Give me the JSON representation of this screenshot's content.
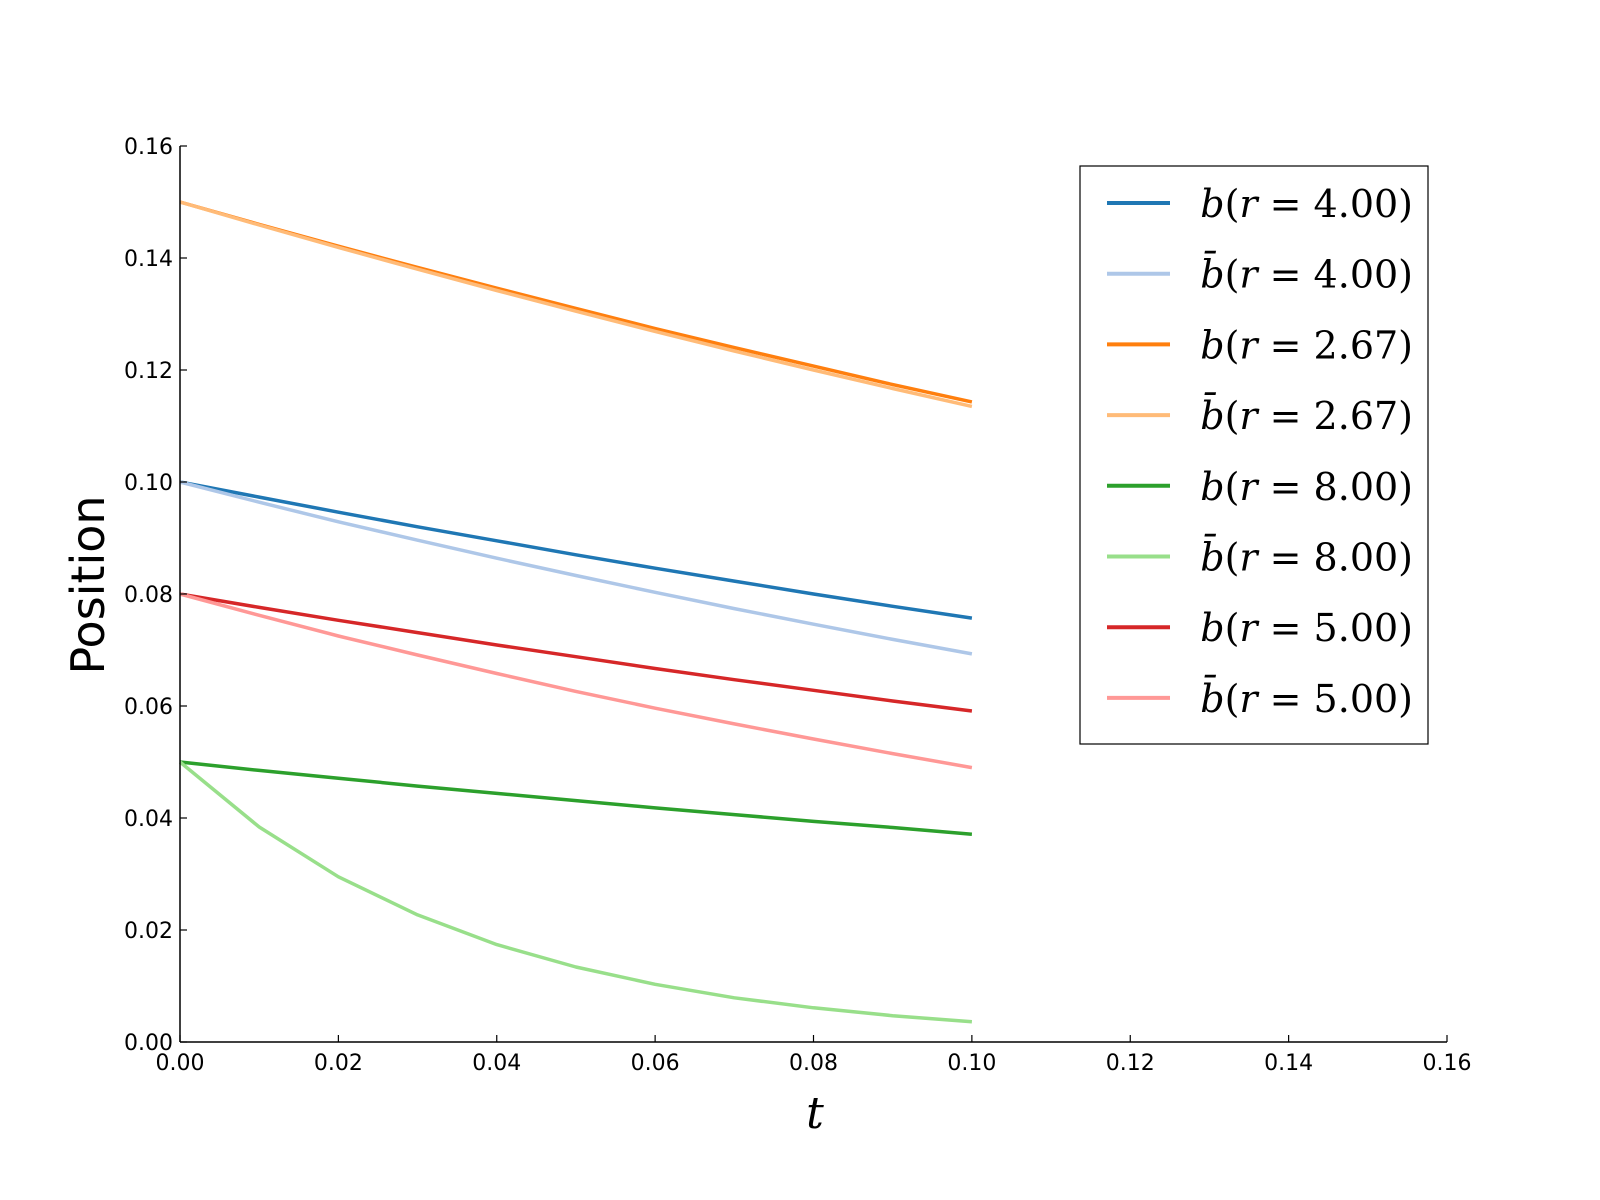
{
  "chart_data": {
    "type": "line",
    "title": "",
    "xlabel": "t",
    "ylabel": "Position",
    "xlim": [
      0.0,
      0.16
    ],
    "ylim": [
      0.0,
      0.16
    ],
    "x_ticks": [
      "0.00",
      "0.02",
      "0.04",
      "0.06",
      "0.08",
      "0.10",
      "0.12",
      "0.14",
      "0.16"
    ],
    "y_ticks": [
      "0.00",
      "0.02",
      "0.04",
      "0.06",
      "0.08",
      "0.10",
      "0.12",
      "0.14",
      "0.16"
    ],
    "grid": false,
    "legend_position": "top-right",
    "x": [
      0.0,
      0.01,
      0.02,
      0.03,
      0.04,
      0.05,
      0.06,
      0.07,
      0.08,
      0.09,
      0.1
    ],
    "series": [
      {
        "name": "b(r = 4.00)",
        "color": "#1f77b4",
        "legend": {
          "base": "b",
          "bar": false,
          "r": "4.00"
        },
        "values": [
          0.1,
          0.0973,
          0.0946,
          0.092,
          0.0895,
          0.087,
          0.0846,
          0.0823,
          0.08,
          0.0778,
          0.0757
        ]
      },
      {
        "name": "b̄(r = 4.00)",
        "color": "#aec7e8",
        "legend": {
          "base": "b",
          "bar": true,
          "r": "4.00"
        },
        "values": [
          0.1,
          0.0964,
          0.0929,
          0.0896,
          0.0864,
          0.0833,
          0.0803,
          0.0774,
          0.0746,
          0.0719,
          0.0693
        ]
      },
      {
        "name": "b(r = 2.67)",
        "color": "#ff7f0e",
        "legend": {
          "base": "b",
          "bar": false,
          "r": "2.67"
        },
        "values": [
          0.15,
          0.146,
          0.1421,
          0.1383,
          0.1346,
          0.131,
          0.1274,
          0.124,
          0.1207,
          0.1174,
          0.1143
        ]
      },
      {
        "name": "b̄(r = 2.67)",
        "color": "#ffbb78",
        "legend": {
          "base": "b",
          "bar": true,
          "r": "2.67"
        },
        "values": [
          0.15,
          0.1459,
          0.1419,
          0.138,
          0.1342,
          0.1305,
          0.1269,
          0.1234,
          0.12,
          0.1167,
          0.1135
        ]
      },
      {
        "name": "b(r = 8.00)",
        "color": "#2ca02c",
        "legend": {
          "base": "b",
          "bar": false,
          "r": "8.00"
        },
        "values": [
          0.05,
          0.0485,
          0.0471,
          0.0457,
          0.0444,
          0.0431,
          0.0418,
          0.0406,
          0.0394,
          0.0383,
          0.0371
        ]
      },
      {
        "name": "b̄(r = 8.00)",
        "color": "#98df8a",
        "legend": {
          "base": "b",
          "bar": true,
          "r": "8.00"
        },
        "values": [
          0.05,
          0.0384,
          0.0295,
          0.0227,
          0.0174,
          0.0134,
          0.0103,
          0.0079,
          0.0061,
          0.0047,
          0.0036
        ]
      },
      {
        "name": "b(r = 5.00)",
        "color": "#d62728",
        "legend": {
          "base": "b",
          "bar": false,
          "r": "5.00"
        },
        "values": [
          0.08,
          0.0776,
          0.0753,
          0.0731,
          0.0709,
          0.0688,
          0.0667,
          0.0647,
          0.0628,
          0.0609,
          0.0591
        ]
      },
      {
        "name": "b̄(r = 5.00)",
        "color": "#ff9896",
        "legend": {
          "base": "b",
          "bar": true,
          "r": "5.00"
        },
        "values": [
          0.08,
          0.0762,
          0.0725,
          0.0691,
          0.0658,
          0.0626,
          0.0596,
          0.0568,
          0.0541,
          0.0515,
          0.049
        ]
      }
    ]
  }
}
